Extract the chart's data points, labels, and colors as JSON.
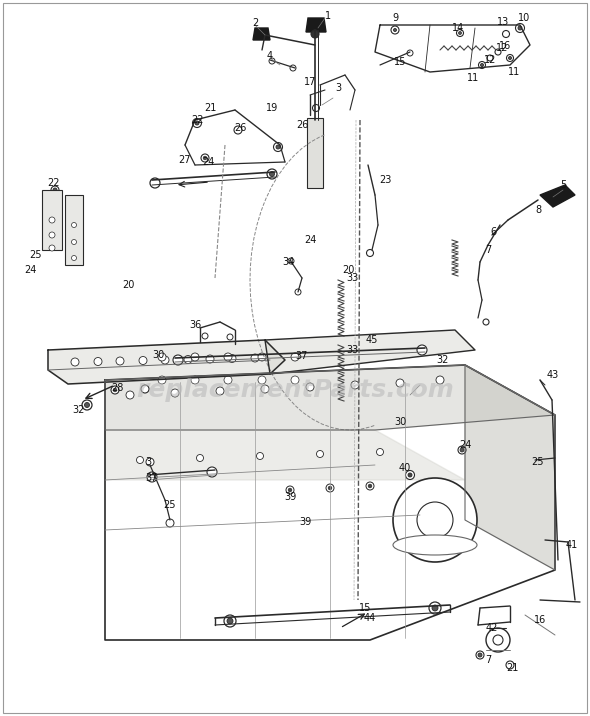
{
  "bg_color": "#f5f5f0",
  "border_color": "#999999",
  "watermark_text": "replacementParts.com",
  "watermark_color": "#bbbbbb",
  "watermark_fontsize": 18,
  "fig_width": 5.9,
  "fig_height": 7.16,
  "dpi": 100,
  "label_fontsize": 7.0,
  "label_color": "#111111",
  "lc": "#2a2a2a",
  "lw_main": 0.9,
  "lw_thin": 0.5,
  "lw_med": 0.7
}
